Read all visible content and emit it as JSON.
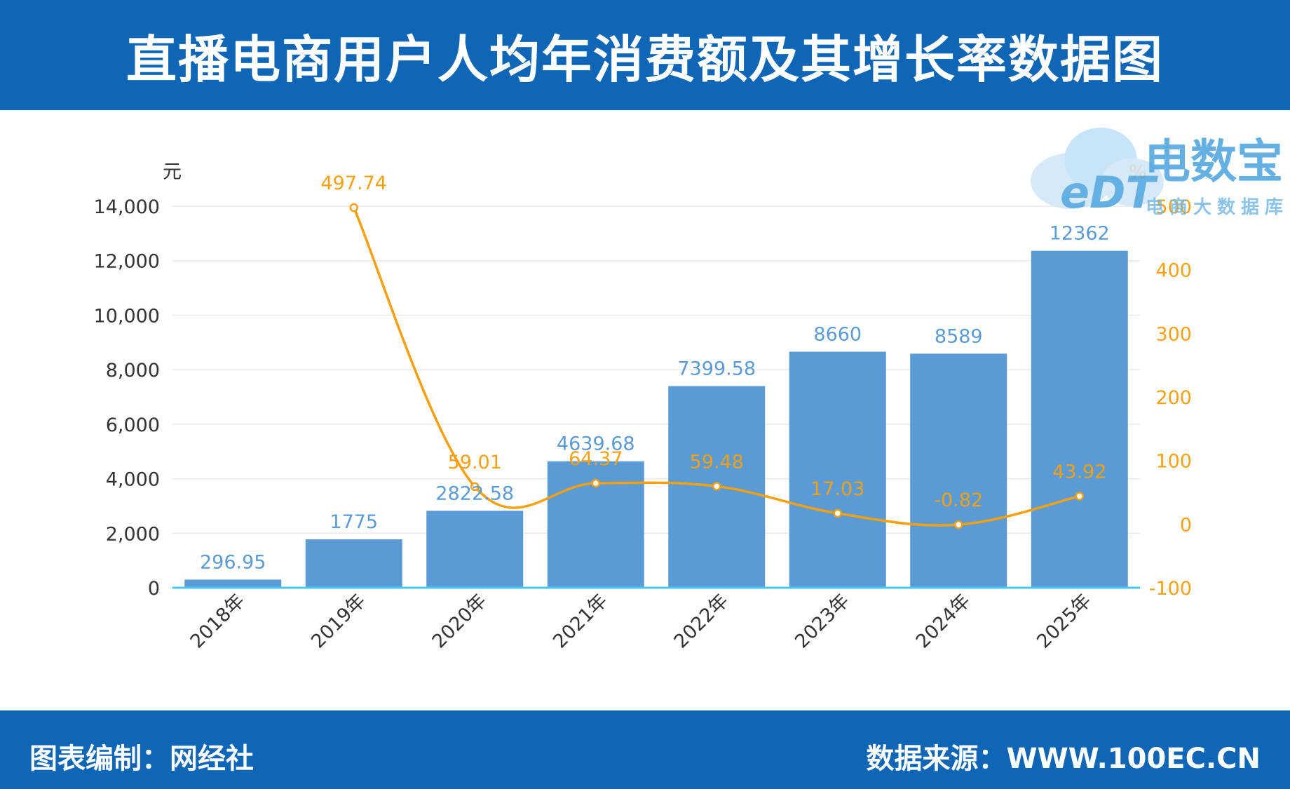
{
  "header": {
    "title": "直播电商用户人均年消费额及其增长率数据图"
  },
  "footer": {
    "left": "图表编制：网经社",
    "right": "数据来源：WWW.100EC.CN"
  },
  "logo": {
    "mark": "eDT",
    "name": "电数宝",
    "subtitle": "电商大数据库"
  },
  "colors": {
    "bar": "#5b9bd5",
    "line": "#f5a011",
    "header": "#0f66b7",
    "baseline": "#45c8f0"
  },
  "chart_data": {
    "type": "bar",
    "categories": [
      "2018年",
      "2019年",
      "2020年",
      "2021年",
      "2022年",
      "2023年",
      "2024年",
      "2025年"
    ],
    "series": [
      {
        "name": "",
        "type": "bar",
        "axis": "left",
        "values": [
          296.95,
          1775,
          2822.58,
          4639.68,
          7399.58,
          8660,
          8589,
          12362
        ],
        "labels": [
          "296.95",
          "1775",
          "2822.58",
          "4639.68",
          "7399.58",
          "8660",
          "8589",
          "12362"
        ]
      },
      {
        "name": "",
        "type": "line",
        "axis": "right",
        "values": [
          null,
          497.74,
          59.01,
          64.37,
          59.48,
          17.03,
          -0.82,
          43.92
        ],
        "labels": [
          "",
          "497.74",
          "59.01",
          "64.37",
          "59.48",
          "17.03",
          "-0.82",
          "43.92"
        ]
      }
    ],
    "y_left": {
      "unit": "元",
      "ylim": [
        0,
        14000
      ],
      "ticks": [
        0,
        2000,
        4000,
        6000,
        8000,
        10000,
        12000,
        14000
      ],
      "tick_labels": [
        "0",
        "2,000",
        "4,000",
        "6,000",
        "8,000",
        "10,000",
        "12,000",
        "14,000"
      ]
    },
    "y_right": {
      "unit": "%",
      "ylim": [
        -100,
        500
      ],
      "ticks": [
        -100,
        0,
        100,
        200,
        300,
        400,
        500
      ],
      "tick_labels": [
        "-100",
        "0",
        "100",
        "200",
        "300",
        "400",
        "500"
      ]
    },
    "grid": true
  }
}
